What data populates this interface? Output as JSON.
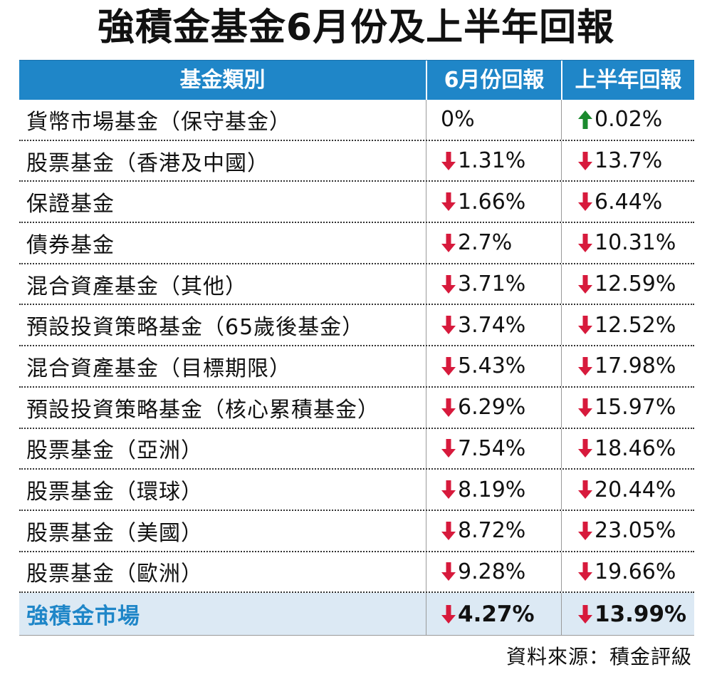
{
  "title": "強積金基金6月份及上半年回報",
  "colors": {
    "header_bg": "#1f86c8",
    "down": "#d71a3c",
    "up": "#1b8a2e",
    "total_bg": "#dce9f4"
  },
  "chart_data": {
    "type": "table",
    "columns": [
      "基金類別",
      "6月份回報",
      "上半年回報"
    ],
    "rows": [
      {
        "name": "貨幣市場基金（保守基金）",
        "june": "0%",
        "june_dir": "none",
        "h1": "0.02%",
        "h1_dir": "up"
      },
      {
        "name": "股票基金（香港及中國）",
        "june": "1.31%",
        "june_dir": "down",
        "h1": "13.7%",
        "h1_dir": "down"
      },
      {
        "name": "保證基金",
        "june": "1.66%",
        "june_dir": "down",
        "h1": "6.44%",
        "h1_dir": "down"
      },
      {
        "name": "債券基金",
        "june": "2.7%",
        "june_dir": "down",
        "h1": "10.31%",
        "h1_dir": "down"
      },
      {
        "name": "混合資產基金（其他）",
        "june": "3.71%",
        "june_dir": "down",
        "h1": "12.59%",
        "h1_dir": "down"
      },
      {
        "name": "預設投資策略基金（65歲後基金）",
        "june": "3.74%",
        "june_dir": "down",
        "h1": "12.52%",
        "h1_dir": "down"
      },
      {
        "name": "混合資產基金（目標期限）",
        "june": "5.43%",
        "june_dir": "down",
        "h1": "17.98%",
        "h1_dir": "down"
      },
      {
        "name": "預設投資策略基金（核心累積基金）",
        "june": "6.29%",
        "june_dir": "down",
        "h1": "15.97%",
        "h1_dir": "down"
      },
      {
        "name": "股票基金（亞洲）",
        "june": "7.54%",
        "june_dir": "down",
        "h1": "18.46%",
        "h1_dir": "down"
      },
      {
        "name": "股票基金（環球）",
        "june": "8.19%",
        "june_dir": "down",
        "h1": "20.44%",
        "h1_dir": "down"
      },
      {
        "name": "股票基金（美國）",
        "june": "8.72%",
        "june_dir": "down",
        "h1": "23.05%",
        "h1_dir": "down"
      },
      {
        "name": "股票基金（歐洲）",
        "june": "9.28%",
        "june_dir": "down",
        "h1": "19.66%",
        "h1_dir": "down"
      }
    ],
    "total": {
      "name": "強積金市場",
      "june": "4.27%",
      "june_dir": "down",
      "h1": "13.99%",
      "h1_dir": "down"
    }
  },
  "source": "資料來源：積金評級"
}
